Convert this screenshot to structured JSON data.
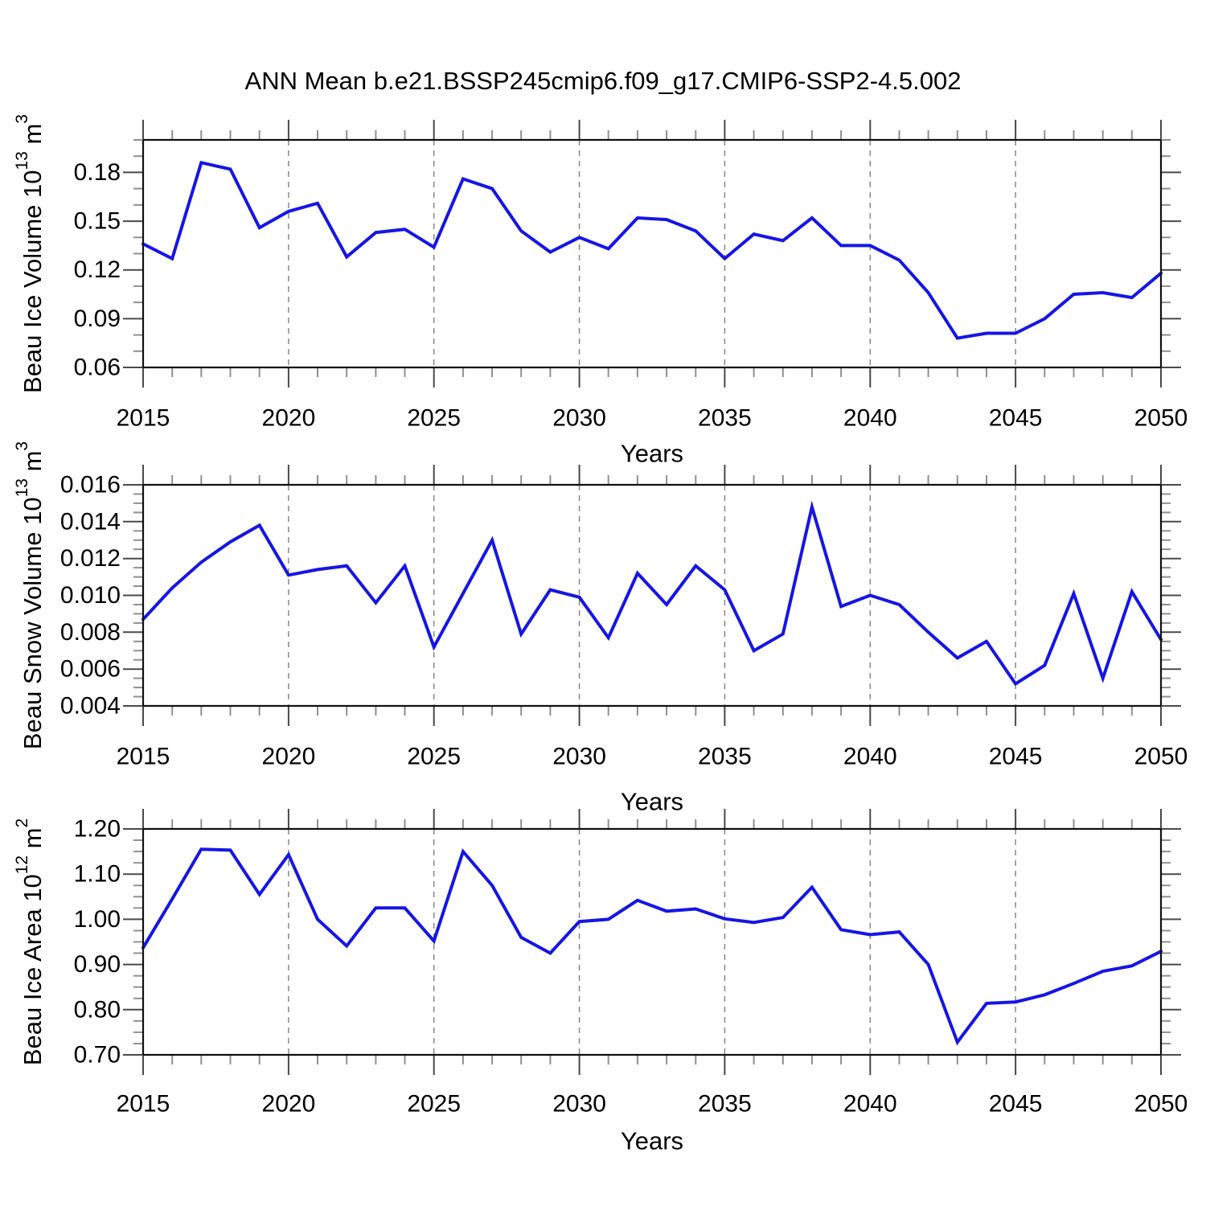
{
  "title": "ANN Mean b.e21.BSSP245cmip6.f09_g17.CMIP6-SSP2-4.5.002",
  "style": {
    "line_color": "#1515e6",
    "frame_color": "#111111",
    "major_tick_color": "#4a4a4a",
    "minor_tick_color": "#909090",
    "grid_color": "#888888",
    "text_color": "#000000",
    "background": "#ffffff"
  },
  "chart_data": [
    {
      "type": "line",
      "name": "ice-volume",
      "ylabel": {
        "prefix": "Beau Ice Volume 10",
        "sup": "13",
        "mid": " m",
        "sup2": "3"
      },
      "xlabel": "Years",
      "legend": "none",
      "grid": "vertical-dashed",
      "x": [
        2015,
        2016,
        2017,
        2018,
        2019,
        2020,
        2021,
        2022,
        2023,
        2024,
        2025,
        2026,
        2027,
        2028,
        2029,
        2030,
        2031,
        2032,
        2033,
        2034,
        2035,
        2036,
        2037,
        2038,
        2039,
        2040,
        2041,
        2042,
        2043,
        2044,
        2045,
        2046,
        2047,
        2048,
        2049,
        2050
      ],
      "values": [
        0.136,
        0.127,
        0.186,
        0.182,
        0.146,
        0.156,
        0.161,
        0.128,
        0.143,
        0.145,
        0.134,
        0.176,
        0.17,
        0.144,
        0.131,
        0.14,
        0.133,
        0.152,
        0.151,
        0.144,
        0.127,
        0.142,
        0.138,
        0.152,
        0.135,
        0.135,
        0.126,
        0.106,
        0.078,
        0.081,
        0.081,
        0.09,
        0.105,
        0.106,
        0.103,
        0.118
      ],
      "xlim": [
        2015,
        2050
      ],
      "ylim": [
        0.06,
        0.2
      ],
      "x_major": [
        2015,
        2020,
        2025,
        2030,
        2035,
        2040,
        2045,
        2050
      ],
      "x_labels": [
        "2015",
        "2020",
        "2025",
        "2030",
        "2035",
        "2040",
        "2045",
        "2050"
      ],
      "x_minor_step": 1,
      "y_major": [
        0.06,
        0.09,
        0.12,
        0.15,
        0.18
      ],
      "y_labels": [
        "0.06",
        "0.09",
        "0.12",
        "0.15",
        "0.18"
      ],
      "y_minor_step": 0.01,
      "grid_x": [
        2020,
        2025,
        2030,
        2035,
        2040,
        2045
      ]
    },
    {
      "type": "line",
      "name": "snow-volume",
      "ylabel": {
        "prefix": "Beau Snow Volume 10",
        "sup": "13",
        "mid": " m",
        "sup2": "3"
      },
      "xlabel": "Years",
      "legend": "none",
      "grid": "vertical-dashed",
      "x": [
        2015,
        2016,
        2017,
        2018,
        2019,
        2020,
        2021,
        2022,
        2023,
        2024,
        2025,
        2026,
        2027,
        2028,
        2029,
        2030,
        2031,
        2032,
        2033,
        2034,
        2035,
        2036,
        2037,
        2038,
        2039,
        2040,
        2041,
        2042,
        2043,
        2044,
        2045,
        2046,
        2047,
        2048,
        2049,
        2050
      ],
      "values": [
        0.0087,
        0.0104,
        0.0118,
        0.0129,
        0.0138,
        0.0111,
        0.0114,
        0.0116,
        0.0096,
        0.0116,
        0.0072,
        0.0101,
        0.013,
        0.0079,
        0.0103,
        0.0099,
        0.0077,
        0.0112,
        0.0095,
        0.0116,
        0.0103,
        0.007,
        0.0079,
        0.0148,
        0.0094,
        0.01,
        0.0095,
        0.008,
        0.0066,
        0.0075,
        0.0052,
        0.0062,
        0.0101,
        0.0055,
        0.0102,
        0.0076
      ],
      "xlim": [
        2015,
        2050
      ],
      "ylim": [
        0.004,
        0.016
      ],
      "x_major": [
        2015,
        2020,
        2025,
        2030,
        2035,
        2040,
        2045,
        2050
      ],
      "x_labels": [
        "2015",
        "2020",
        "2025",
        "2030",
        "2035",
        "2040",
        "2045",
        "2050"
      ],
      "x_minor_step": 1,
      "y_major": [
        0.004,
        0.006,
        0.008,
        0.01,
        0.012,
        0.014,
        0.016
      ],
      "y_labels": [
        "0.004",
        "0.006",
        "0.008",
        "0.010",
        "0.012",
        "0.014",
        "0.016"
      ],
      "y_minor_step": 0.0005,
      "grid_x": [
        2020,
        2025,
        2030,
        2035,
        2040,
        2045
      ]
    },
    {
      "type": "line",
      "name": "ice-area",
      "ylabel": {
        "prefix": "Beau Ice Area 10",
        "sup": "12",
        "mid": " m",
        "sup2": "2"
      },
      "xlabel": "Years",
      "legend": "none",
      "grid": "vertical-dashed",
      "x": [
        2015,
        2016,
        2017,
        2018,
        2019,
        2020,
        2021,
        2022,
        2023,
        2024,
        2025,
        2026,
        2027,
        2028,
        2029,
        2030,
        2031,
        2032,
        2033,
        2034,
        2035,
        2036,
        2037,
        2038,
        2039,
        2040,
        2041,
        2042,
        2043,
        2044,
        2045,
        2046,
        2047,
        2048,
        2049,
        2050
      ],
      "values": [
        0.937,
        1.045,
        1.155,
        1.153,
        1.055,
        1.143,
        1.0,
        0.941,
        1.025,
        1.025,
        0.952,
        1.15,
        1.075,
        0.96,
        0.925,
        0.995,
        1.0,
        1.042,
        1.018,
        1.023,
        1.001,
        0.993,
        1.004,
        1.071,
        0.977,
        0.966,
        0.972,
        0.9,
        0.728,
        0.814,
        0.817,
        0.833,
        0.858,
        0.885,
        0.897,
        0.929
      ],
      "xlim": [
        2015,
        2050
      ],
      "ylim": [
        0.7,
        1.2
      ],
      "x_major": [
        2015,
        2020,
        2025,
        2030,
        2035,
        2040,
        2045,
        2050
      ],
      "x_labels": [
        "2015",
        "2020",
        "2025",
        "2030",
        "2035",
        "2040",
        "2045",
        "2050"
      ],
      "x_minor_step": 1,
      "y_major": [
        0.7,
        0.8,
        0.9,
        1.0,
        1.1,
        1.2
      ],
      "y_labels": [
        "0.70",
        "0.80",
        "0.90",
        "1.00",
        "1.10",
        "1.20"
      ],
      "y_minor_step": 0.025,
      "grid_x": [
        2020,
        2025,
        2030,
        2035,
        2040,
        2045
      ]
    }
  ]
}
